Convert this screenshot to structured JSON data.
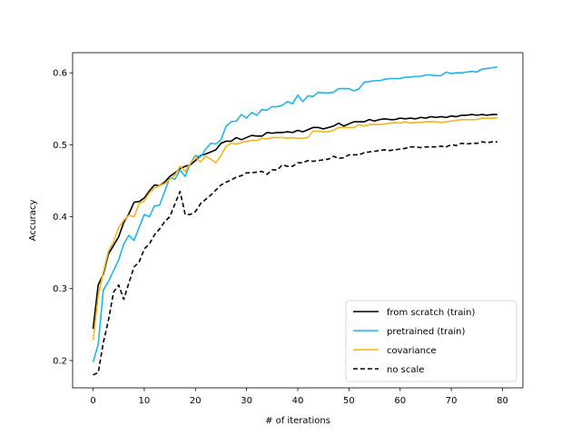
{
  "chart_data": {
    "type": "line",
    "title": "",
    "xlabel": "# of iterations",
    "ylabel": "Accuracy",
    "xlim": [
      -4,
      84
    ],
    "ylim": [
      0.162,
      0.628
    ],
    "xticks": [
      0,
      10,
      20,
      30,
      40,
      50,
      60,
      70,
      80
    ],
    "xtick_labels": [
      "0",
      "10",
      "20",
      "30",
      "40",
      "50",
      "60",
      "70",
      "80"
    ],
    "yticks": [
      0.2,
      0.3,
      0.4,
      0.5,
      0.6
    ],
    "ytick_labels": [
      "0.2",
      "0.3",
      "0.4",
      "0.5",
      "0.6"
    ],
    "grid": false,
    "legend_position": "lower-right",
    "x": [
      0,
      1,
      2,
      3,
      4,
      5,
      6,
      7,
      8,
      9,
      10,
      11,
      12,
      13,
      14,
      15,
      16,
      17,
      18,
      19,
      20,
      21,
      22,
      23,
      24,
      25,
      26,
      27,
      28,
      29,
      30,
      31,
      32,
      33,
      34,
      35,
      36,
      37,
      38,
      39,
      40,
      41,
      42,
      43,
      44,
      45,
      46,
      47,
      48,
      49,
      50,
      51,
      52,
      53,
      54,
      55,
      56,
      57,
      58,
      59,
      60,
      61,
      62,
      63,
      64,
      65,
      66,
      67,
      68,
      69,
      70,
      71,
      72,
      73,
      74,
      75,
      76,
      77,
      78,
      79
    ],
    "series": [
      {
        "name": "from scratch (train)",
        "color": "#000000",
        "dash": "solid",
        "values": [
          0.244,
          0.305,
          0.32,
          0.348,
          0.36,
          0.372,
          0.392,
          0.404,
          0.42,
          0.421,
          0.426,
          0.436,
          0.444,
          0.443,
          0.448,
          0.456,
          0.461,
          0.467,
          0.47,
          0.472,
          0.478,
          0.485,
          0.487,
          0.49,
          0.493,
          0.502,
          0.505,
          0.505,
          0.51,
          0.507,
          0.51,
          0.513,
          0.512,
          0.512,
          0.517,
          0.516,
          0.517,
          0.517,
          0.518,
          0.517,
          0.52,
          0.518,
          0.521,
          0.524,
          0.524,
          0.522,
          0.524,
          0.526,
          0.53,
          0.526,
          0.529,
          0.532,
          0.532,
          0.532,
          0.535,
          0.533,
          0.535,
          0.536,
          0.535,
          0.535,
          0.537,
          0.536,
          0.537,
          0.536,
          0.538,
          0.537,
          0.539,
          0.538,
          0.539,
          0.538,
          0.54,
          0.539,
          0.541,
          0.541,
          0.542,
          0.541,
          0.542,
          0.541,
          0.542,
          0.542
        ]
      },
      {
        "name": "pretrained (train)",
        "color": "#1fb4e6",
        "dash": "solid",
        "values": [
          0.198,
          0.222,
          0.298,
          0.31,
          0.325,
          0.34,
          0.362,
          0.374,
          0.367,
          0.385,
          0.403,
          0.4,
          0.415,
          0.416,
          0.435,
          0.454,
          0.452,
          0.465,
          0.456,
          0.474,
          0.485,
          0.483,
          0.494,
          0.502,
          0.501,
          0.507,
          0.526,
          0.532,
          0.533,
          0.542,
          0.537,
          0.545,
          0.541,
          0.549,
          0.548,
          0.553,
          0.553,
          0.555,
          0.56,
          0.557,
          0.569,
          0.56,
          0.568,
          0.567,
          0.573,
          0.572,
          0.572,
          0.573,
          0.578,
          0.578,
          0.578,
          0.575,
          0.578,
          0.587,
          0.588,
          0.589,
          0.589,
          0.591,
          0.592,
          0.592,
          0.592,
          0.594,
          0.594,
          0.595,
          0.595,
          0.597,
          0.597,
          0.596,
          0.596,
          0.601,
          0.599,
          0.6,
          0.6,
          0.601,
          0.602,
          0.601,
          0.605,
          0.606,
          0.607,
          0.608
        ]
      },
      {
        "name": "covariance",
        "color": "#f2b51c",
        "dash": "solid",
        "values": [
          0.228,
          0.29,
          0.323,
          0.352,
          0.365,
          0.385,
          0.395,
          0.402,
          0.4,
          0.418,
          0.422,
          0.433,
          0.44,
          0.443,
          0.446,
          0.452,
          0.458,
          0.47,
          0.463,
          0.474,
          0.483,
          0.476,
          0.484,
          0.48,
          0.475,
          0.485,
          0.498,
          0.502,
          0.501,
          0.503,
          0.505,
          0.506,
          0.506,
          0.509,
          0.508,
          0.51,
          0.51,
          0.51,
          0.509,
          0.51,
          0.509,
          0.509,
          0.51,
          0.519,
          0.519,
          0.518,
          0.518,
          0.52,
          0.524,
          0.524,
          0.524,
          0.524,
          0.528,
          0.526,
          0.528,
          0.528,
          0.528,
          0.529,
          0.53,
          0.531,
          0.53,
          0.532,
          0.53,
          0.531,
          0.531,
          0.532,
          0.532,
          0.532,
          0.531,
          0.532,
          0.533,
          0.534,
          0.535,
          0.535,
          0.535,
          0.535,
          0.537,
          0.537,
          0.537,
          0.537
        ]
      },
      {
        "name": "no scale",
        "color": "#000000",
        "dash": "dashed",
        "values": [
          0.18,
          0.183,
          0.225,
          0.256,
          0.295,
          0.305,
          0.285,
          0.308,
          0.33,
          0.337,
          0.355,
          0.362,
          0.375,
          0.383,
          0.393,
          0.4,
          0.418,
          0.435,
          0.403,
          0.403,
          0.407,
          0.418,
          0.424,
          0.43,
          0.437,
          0.444,
          0.448,
          0.451,
          0.455,
          0.457,
          0.461,
          0.461,
          0.462,
          0.463,
          0.459,
          0.465,
          0.465,
          0.472,
          0.47,
          0.47,
          0.475,
          0.475,
          0.478,
          0.477,
          0.478,
          0.479,
          0.48,
          0.484,
          0.481,
          0.482,
          0.486,
          0.486,
          0.486,
          0.489,
          0.49,
          0.491,
          0.492,
          0.493,
          0.492,
          0.493,
          0.494,
          0.495,
          0.497,
          0.497,
          0.496,
          0.497,
          0.497,
          0.497,
          0.498,
          0.497,
          0.5,
          0.499,
          0.502,
          0.501,
          0.502,
          0.502,
          0.504,
          0.503,
          0.504,
          0.504
        ]
      }
    ]
  }
}
